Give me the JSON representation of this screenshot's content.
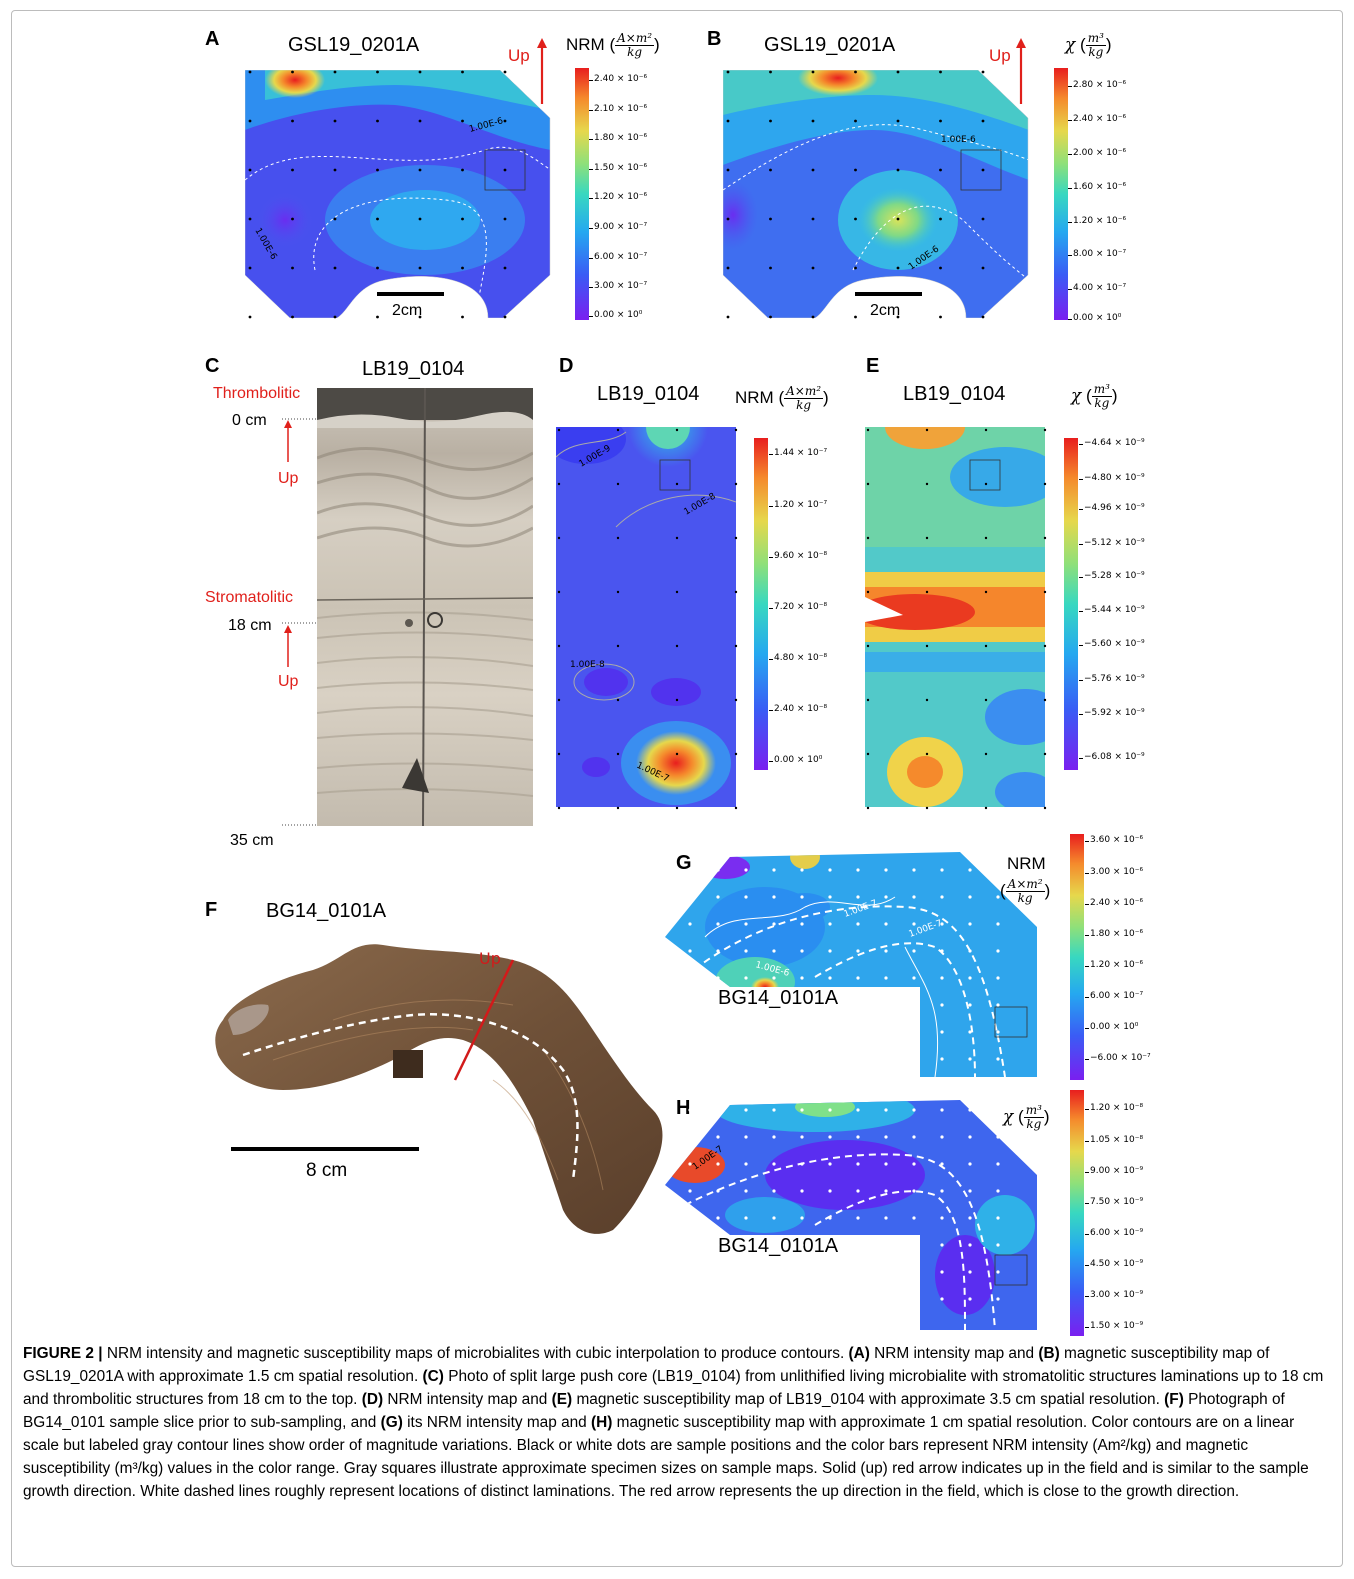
{
  "panels": {
    "A": {
      "letter": "A",
      "title": "GSL19_0201A",
      "up": "Up",
      "scale": "2cm",
      "cb_label": "NRM",
      "unit_num": "A×m²",
      "unit_den": "kg",
      "ticks": [
        "2.40 × 10⁻⁶",
        "2.10 × 10⁻⁶",
        "1.80 × 10⁻⁶",
        "1.50 × 10⁻⁶",
        "1.20 × 10⁻⁶",
        "9.00 × 10⁻⁷",
        "6.00 × 10⁻⁷",
        "3.00 × 10⁻⁷",
        "0.00 × 10⁰"
      ],
      "contours": [
        "1.00E-6",
        "1.00E-6"
      ]
    },
    "B": {
      "letter": "B",
      "title": "GSL19_0201A",
      "up": "Up",
      "scale": "2cm",
      "cb_label": "χ",
      "unit_num": "m³",
      "unit_den": "kg",
      "ticks": [
        "2.80 × 10⁻⁶",
        "2.40 × 10⁻⁶",
        "2.00 × 10⁻⁶",
        "1.60 × 10⁻⁶",
        "1.20 × 10⁻⁶",
        "8.00 × 10⁻⁷",
        "4.00 × 10⁻⁷",
        "0.00 × 10⁰"
      ],
      "contours": [
        "1.00E-6",
        "1.00E-6"
      ]
    },
    "C": {
      "letter": "C",
      "title": "LB19_0104",
      "top_label": "Thrombolitic",
      "mid_label": "Stromatolitic",
      "depth0": "0 cm",
      "depth18": "18 cm",
      "depth35": "35 cm",
      "up1": "Up",
      "up2": "Up"
    },
    "D": {
      "letter": "D",
      "title": "LB19_0104",
      "cb_label": "NRM",
      "unit_num": "A×m²",
      "unit_den": "kg",
      "ticks": [
        "1.44 × 10⁻⁷",
        "1.20 × 10⁻⁷",
        "9.60 × 10⁻⁸",
        "7.20 × 10⁻⁸",
        "4.80 × 10⁻⁸",
        "2.40 × 10⁻⁸",
        "0.00 × 10⁰"
      ],
      "contours": [
        "1.00E-9",
        "1.00E-8",
        "1.00E-8",
        "1.00E-7"
      ]
    },
    "E": {
      "letter": "E",
      "title": "LB19_0104",
      "cb_label": "χ",
      "unit_num": "m³",
      "unit_den": "kg",
      "ticks": [
        "−4.64 × 10⁻⁹",
        "−4.80 × 10⁻⁹",
        "−4.96 × 10⁻⁹",
        "−5.12 × 10⁻⁹",
        "−5.28 × 10⁻⁹",
        "−5.44 × 10⁻⁹",
        "−5.60 × 10⁻⁹",
        "−5.76 × 10⁻⁹",
        "−5.92 × 10⁻⁹",
        "−6.08 × 10⁻⁹"
      ]
    },
    "F": {
      "letter": "F",
      "title": "BG14_0101A",
      "up": "Up",
      "scale": "8 cm"
    },
    "G": {
      "letter": "G",
      "title": "BG14_0101A",
      "cb_label": "NRM",
      "unit_num": "A×m²",
      "unit_den": "kg",
      "ticks": [
        "3.60 × 10⁻⁶",
        "3.00 × 10⁻⁶",
        "2.40 × 10⁻⁶",
        "1.80 × 10⁻⁶",
        "1.20 × 10⁻⁶",
        "6.00 × 10⁻⁷",
        "0.00 × 10⁰",
        "−6.00 × 10⁻⁷"
      ],
      "contours": [
        "1.00E-7",
        "1.00E-7",
        "1.00E-6"
      ]
    },
    "H": {
      "letter": "H",
      "title": "BG14_0101A",
      "cb_label": "χ",
      "unit_num": "m³",
      "unit_den": "kg",
      "ticks": [
        "1.20 × 10⁻⁸",
        "1.05 × 10⁻⁸",
        "9.00 × 10⁻⁹",
        "7.50 × 10⁻⁹",
        "6.00 × 10⁻⁹",
        "4.50 × 10⁻⁹",
        "3.00 × 10⁻⁹",
        "1.50 × 10⁻⁹"
      ],
      "contours": [
        "1.00E-7"
      ]
    }
  },
  "caption": {
    "head": "FIGURE 2 |",
    "segments": [
      {
        "b": false,
        "t": " NRM intensity and magnetic susceptibility maps of microbialites with cubic interpolation to produce contours. "
      },
      {
        "b": true,
        "t": "(A)"
      },
      {
        "b": false,
        "t": " NRM intensity map and "
      },
      {
        "b": true,
        "t": "(B)"
      },
      {
        "b": false,
        "t": " magnetic susceptibility map of GSL19_0201A with approximate 1.5 cm spatial resolution. "
      },
      {
        "b": true,
        "t": "(C)"
      },
      {
        "b": false,
        "t": " Photo of split large push core (LB19_0104) from unlithified living microbialite with stromatolitic structures laminations up to 18 cm and thrombolitic structures from 18 cm to the top. "
      },
      {
        "b": true,
        "t": "(D)"
      },
      {
        "b": false,
        "t": " NRM intensity map and "
      },
      {
        "b": true,
        "t": "(E)"
      },
      {
        "b": false,
        "t": " magnetic susceptibility map of LB19_0104 with approximate 3.5 cm spatial resolution. "
      },
      {
        "b": true,
        "t": "(F)"
      },
      {
        "b": false,
        "t": " Photograph of BG14_0101 sample slice prior to sub-sampling, and "
      },
      {
        "b": true,
        "t": "(G)"
      },
      {
        "b": false,
        "t": " its NRM intensity map and "
      },
      {
        "b": true,
        "t": "(H)"
      },
      {
        "b": false,
        "t": " magnetic susceptibility map with approximate 1 cm spatial resolution. Color contours are on a linear scale but labeled gray contour lines show order of magnitude variations. Black or white dots are sample positions and the color bars represent NRM intensity (Am²/kg) and magnetic susceptibility (m³/kg) values in the color range. Gray squares illustrate approximate specimen sizes on sample maps. Solid (up) red arrow indicates up in the field and is similar to the sample growth direction. White dashed lines roughly represent locations of distinct laminations. The red arrow represents the up direction in the field, which is close to the growth direction."
      }
    ]
  }
}
